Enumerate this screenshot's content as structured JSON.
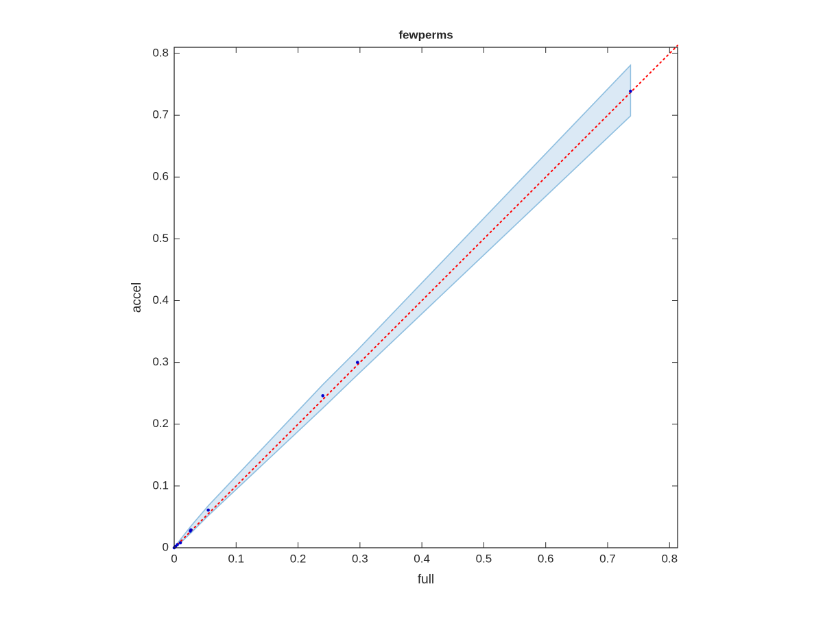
{
  "chart_data": {
    "type": "scatter",
    "title": "fewperms",
    "xlabel": "full",
    "ylabel": "accel",
    "xlim": [
      0,
      0.813
    ],
    "ylim": [
      0,
      0.81
    ],
    "xticks": [
      0,
      0.1,
      0.2,
      0.3,
      0.4,
      0.5,
      0.6,
      0.7,
      0.8
    ],
    "yticks": [
      0,
      0.1,
      0.2,
      0.3,
      0.4,
      0.5,
      0.6,
      0.7,
      0.8
    ],
    "band": {
      "x": [
        0,
        0.005,
        0.027,
        0.055,
        0.24,
        0.296,
        0.737
      ],
      "lower": [
        0,
        0.003,
        0.024,
        0.052,
        0.226,
        0.28,
        0.699
      ],
      "upper": [
        0,
        0.007,
        0.035,
        0.068,
        0.264,
        0.32,
        0.781
      ],
      "color": "#dbe9f5",
      "edge_color": "#8fbfe0"
    },
    "reference_line": {
      "x": [
        0,
        0.813
      ],
      "y": [
        0,
        0.813
      ],
      "color": "#ff0000"
    },
    "points": {
      "x": [
        0,
        0.002,
        0.005,
        0.01,
        0.026,
        0.027,
        0.055,
        0.24,
        0.296,
        0.737
      ],
      "y": [
        0,
        0.002,
        0.005,
        0.008,
        0.027,
        0.029,
        0.061,
        0.246,
        0.3,
        0.739
      ],
      "color": "#0000cc"
    }
  }
}
